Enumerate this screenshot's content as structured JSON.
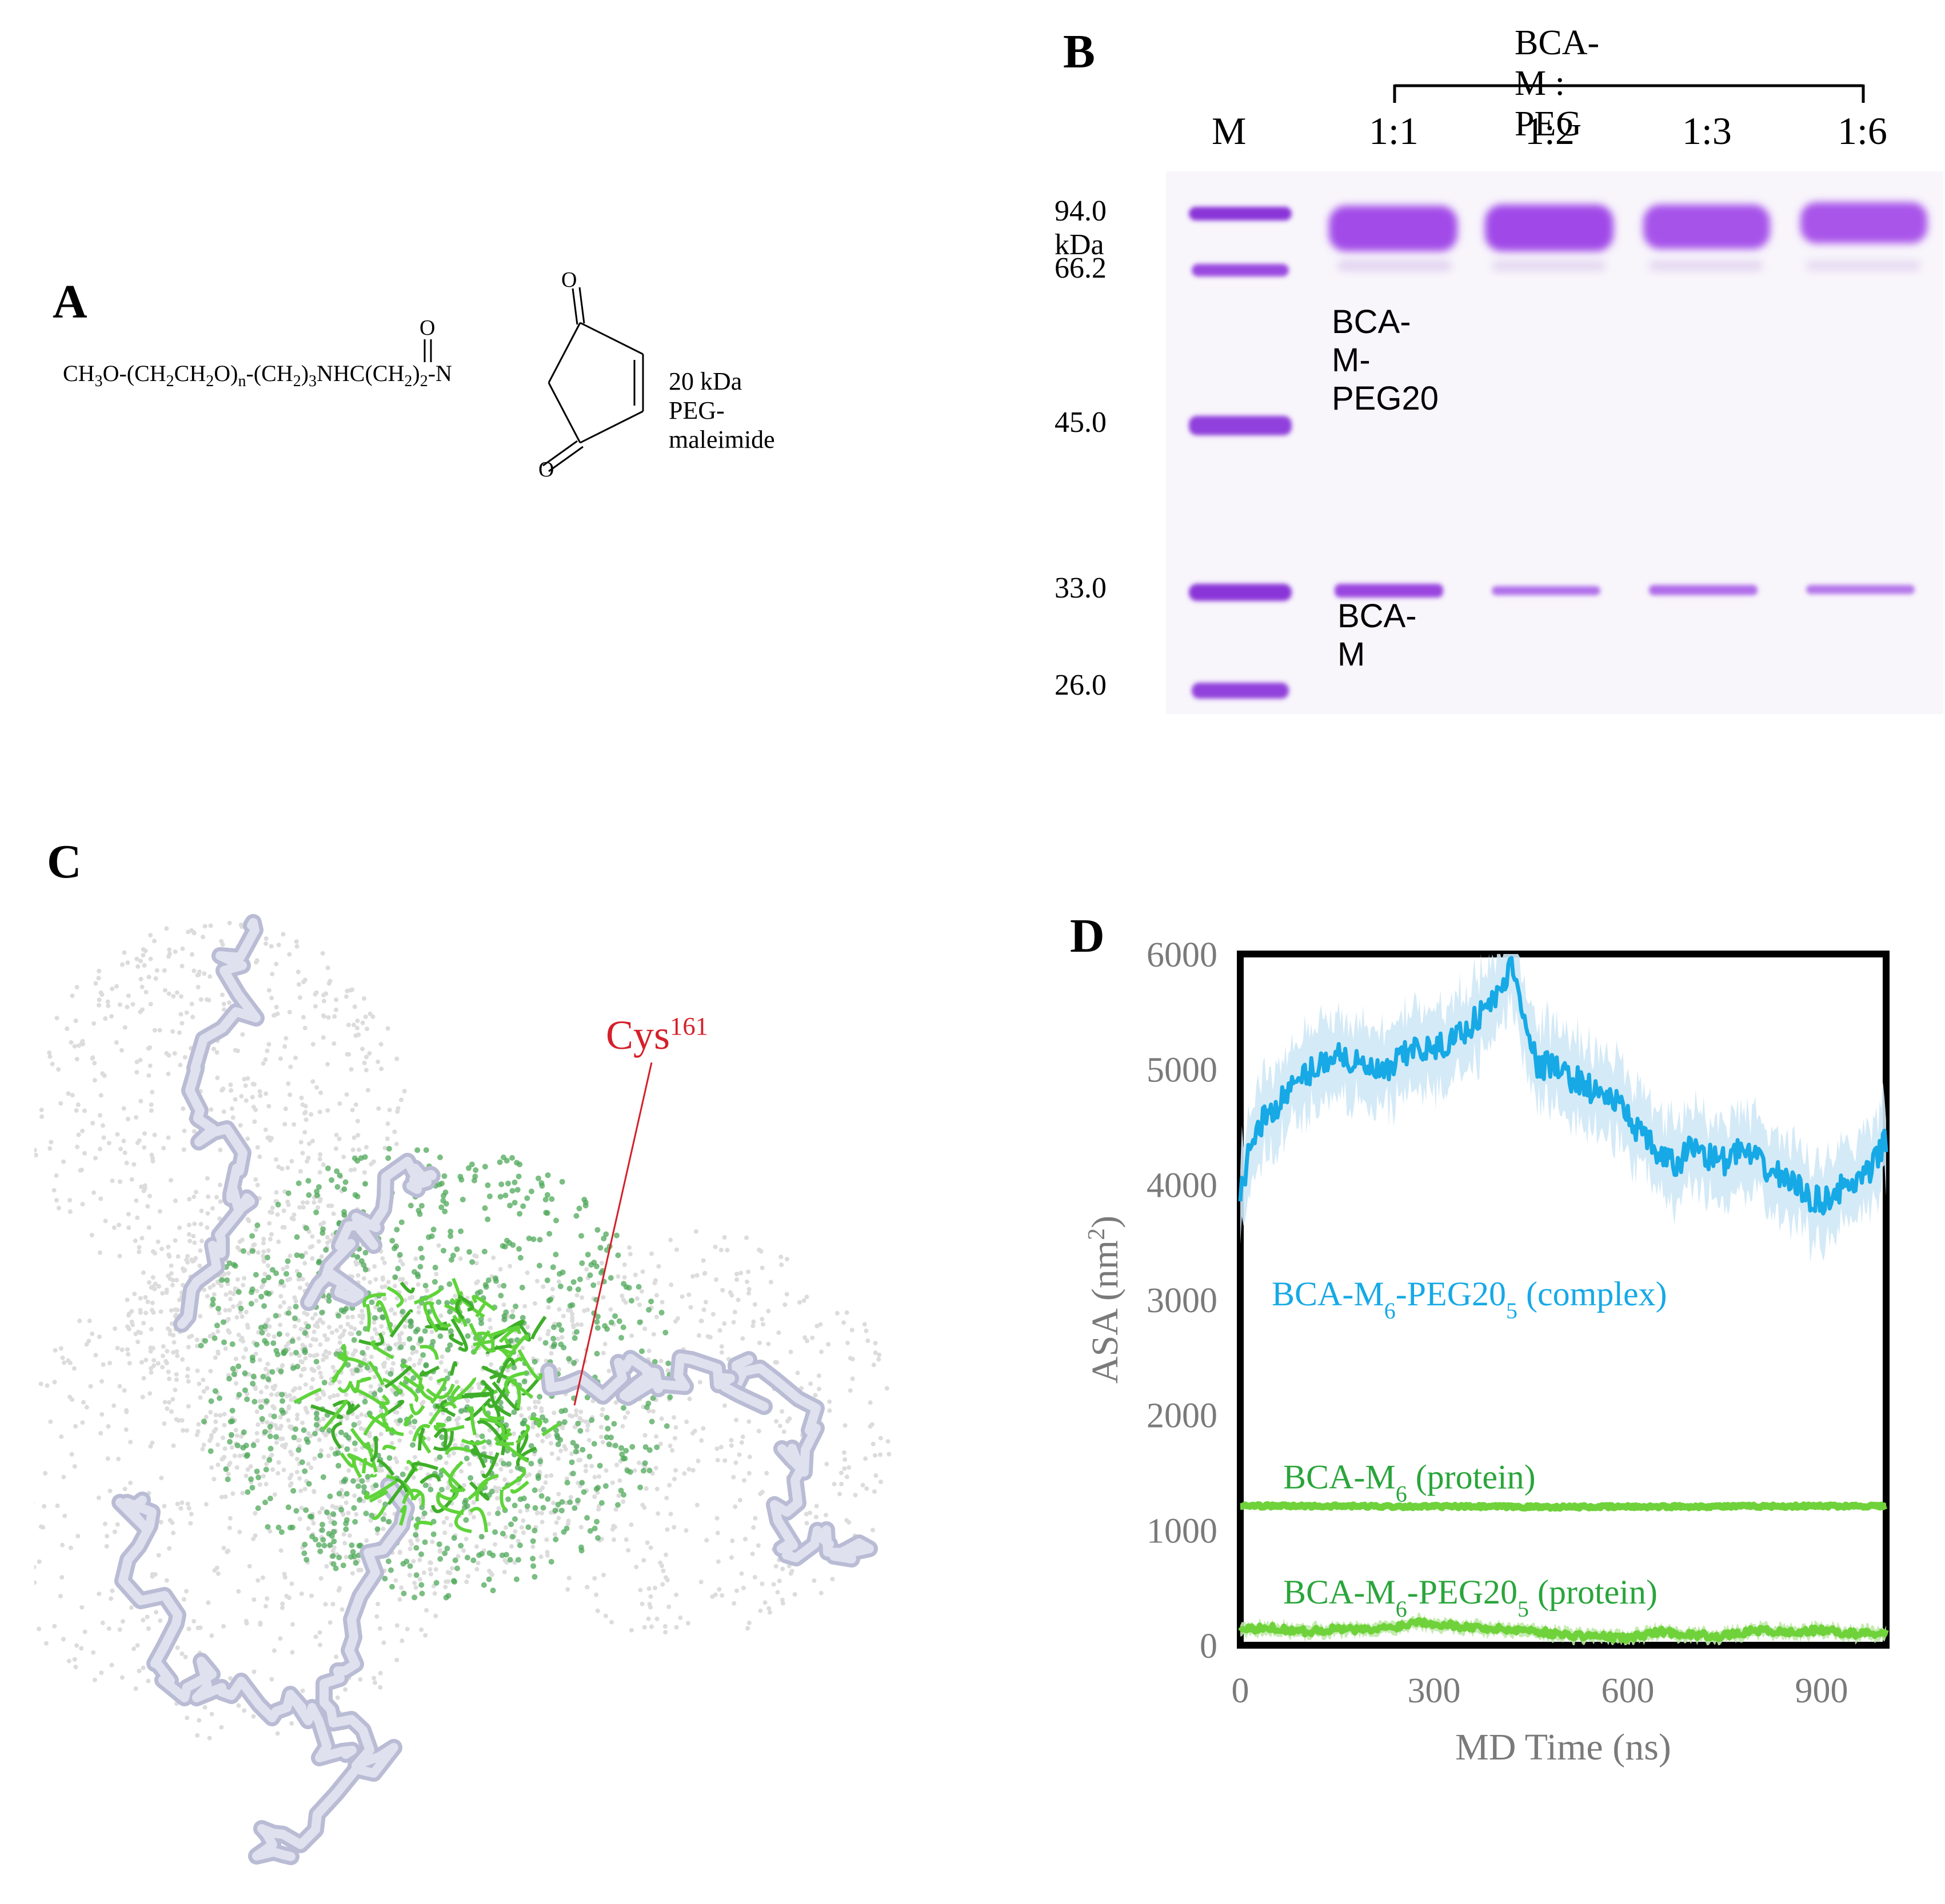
{
  "panels": {
    "a": {
      "label": "A",
      "formula": {
        "p1": "CH",
        "s1": "3",
        "p2": "O-(CH",
        "s2": "2",
        "p3": "CH",
        "s3": "2",
        "p4": "O)",
        "s4": "n",
        "p5": "-(CH",
        "s5": "2",
        "p6": ")",
        "s6": "3",
        "p7": "NHC(CH",
        "s7": "2",
        "p8": ")",
        "s8": "2",
        "p9": "-N"
      },
      "atom_o_top": "O",
      "atom_o_left": "O",
      "atom_o_bottom": "O",
      "caption": "20 kDa PEG-maleimide"
    },
    "b": {
      "label": "B",
      "group_title": "BCA-M : PEG",
      "lanes": [
        {
          "label": "M"
        },
        {
          "label": "1:1"
        },
        {
          "label": "1:2"
        },
        {
          "label": "1:3"
        },
        {
          "label": "1:6"
        }
      ],
      "markers": [
        "94.0 kDa",
        "66.2",
        "45.0",
        "33.0",
        "26.0"
      ],
      "band_labels": {
        "upper": "BCA-M-PEG20",
        "lower": "BCA-M"
      }
    },
    "c": {
      "label": "C",
      "annotation": {
        "base": "Cys",
        "sup": "161"
      }
    },
    "d": {
      "label": "D",
      "legend": {
        "complex": {
          "a": "BCA-M",
          "b": "6",
          "c": "-PEG20",
          "d": "5",
          "e": " (complex)"
        },
        "protein": {
          "a": "BCA-M",
          "b": "6",
          "c": " (protein)"
        },
        "pegprotein": {
          "a": "BCA-M",
          "b": "6",
          "c": "-PEG20",
          "d": "5",
          "e": " (protein)"
        }
      }
    }
  },
  "colors": {
    "gel_band": "#9b3fe0",
    "complex_line": "#16a9e6",
    "complex_band": "#cfe8f6",
    "protein_line": "#6fd23a",
    "protein_text": "#2aa53b",
    "axis_text": "#7a7a7a",
    "annotation_red": "#d4202a"
  },
  "chart_data": {
    "type": "line",
    "title": "",
    "xlabel": "MD Time (ns)",
    "ylabel_base": "ASA (nm",
    "ylabel_sup": "2",
    "ylabel_end": ")",
    "xlim": [
      0,
      1000
    ],
    "ylim": [
      0,
      6000
    ],
    "xticks": [
      0,
      300,
      600,
      900
    ],
    "yticks": [
      0,
      1000,
      2000,
      3000,
      4000,
      5000,
      6000
    ],
    "series": [
      {
        "name": "BCA-M6-PEG205 (complex)",
        "x": [
          0,
          25,
          50,
          75,
          100,
          125,
          150,
          175,
          200,
          225,
          250,
          275,
          300,
          325,
          350,
          375,
          400,
          420,
          440,
          460,
          480,
          500,
          525,
          550,
          575,
          600,
          625,
          650,
          675,
          700,
          725,
          750,
          775,
          800,
          825,
          850,
          875,
          900,
          925,
          950,
          975,
          1000
        ],
        "y": [
          3950,
          4500,
          4650,
          4800,
          4950,
          5050,
          5150,
          5050,
          5000,
          4950,
          5100,
          5200,
          5150,
          5250,
          5350,
          5500,
          5650,
          5900,
          5500,
          5000,
          5050,
          4950,
          4900,
          4800,
          4750,
          4600,
          4400,
          4250,
          4150,
          4350,
          4250,
          4200,
          4300,
          4200,
          4100,
          4050,
          3900,
          3850,
          3950,
          4000,
          4100,
          4400
        ],
        "spread": 380
      },
      {
        "name": "BCA-M6 (protein)",
        "x": [
          0,
          250,
          500,
          750,
          1000
        ],
        "y": [
          1210,
          1205,
          1200,
          1205,
          1210
        ],
        "spread": 20
      },
      {
        "name": "BCA-M6-PEG205 (protein)",
        "x": [
          0,
          50,
          100,
          150,
          200,
          250,
          275,
          300,
          350,
          400,
          450,
          500,
          550,
          600,
          650,
          700,
          750,
          800,
          850,
          900,
          950,
          1000
        ],
        "y": [
          130,
          150,
          120,
          140,
          130,
          170,
          210,
          190,
          160,
          140,
          130,
          90,
          80,
          60,
          120,
          90,
          80,
          130,
          110,
          130,
          100,
          110
        ],
        "spread": 60
      }
    ]
  }
}
